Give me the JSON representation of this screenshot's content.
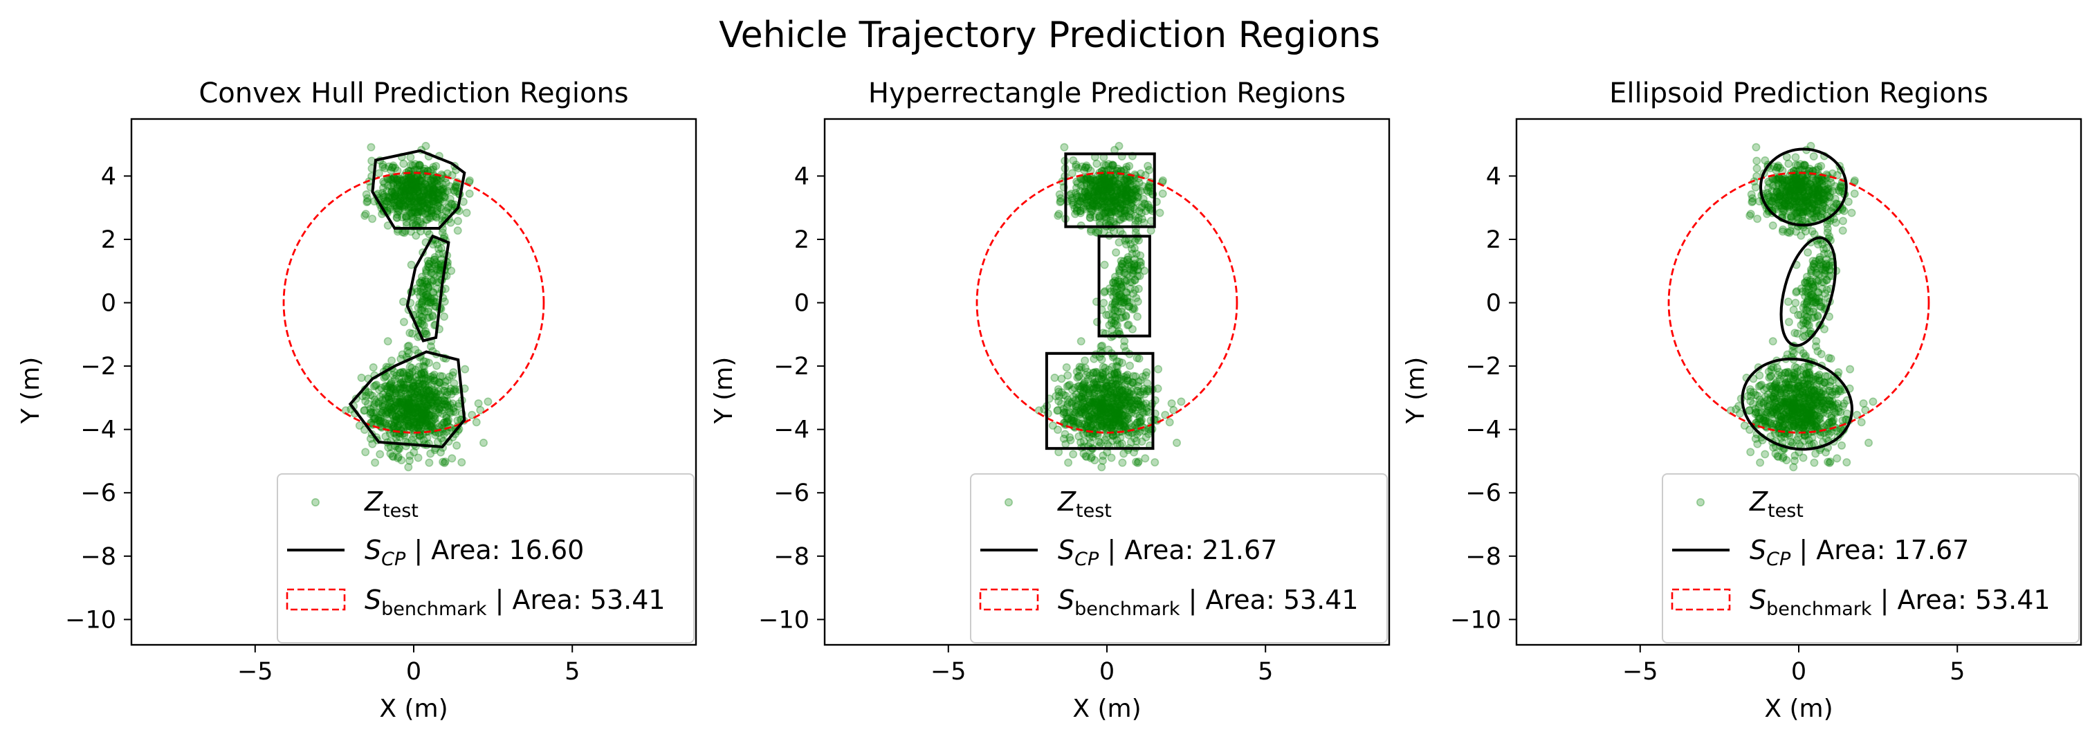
{
  "figure": {
    "title": "Vehicle Trajectory Prediction Regions"
  },
  "colors": {
    "points": "#008000",
    "region": "#000000",
    "benchmark": "#ff0000",
    "axes": "#000000",
    "legend_border": "#cccccc"
  },
  "chart_data": [
    {
      "type": "scatter",
      "title": "Convex Hull Prediction Regions",
      "xlabel": "X (m)",
      "ylabel": "Y (m)",
      "xlim": [
        -8.9,
        8.9
      ],
      "ylim": [
        -10.8,
        5.8
      ],
      "xticks": [
        -5,
        0,
        5
      ],
      "xtick_labels": [
        "−5",
        "0",
        "5"
      ],
      "yticks": [
        4,
        2,
        0,
        -2,
        -4,
        -6,
        -8,
        -10
      ],
      "ytick_labels": [
        "4",
        "2",
        "0",
        "−2",
        "−4",
        "−6",
        "−8",
        "−10"
      ],
      "grid": false,
      "clusters": [
        {
          "label": "top",
          "center": [
            0.1,
            3.4
          ],
          "spread": [
            0.65,
            0.5
          ],
          "count": 520
        },
        {
          "label": "middle",
          "center": [
            0.5,
            0.3
          ],
          "spread": [
            0.28,
            0.9
          ],
          "count": 180
        },
        {
          "label": "bottom",
          "center": [
            0.0,
            -3.3
          ],
          "spread": [
            0.75,
            0.7
          ],
          "count": 700
        }
      ],
      "region_shape": "polygon",
      "regions": [
        [
          [
            -1.2,
            4.5
          ],
          [
            0.2,
            4.8
          ],
          [
            1.2,
            4.4
          ],
          [
            1.6,
            4.1
          ],
          [
            1.4,
            3.0
          ],
          [
            0.8,
            2.35
          ],
          [
            -0.6,
            2.35
          ],
          [
            -1.3,
            3.5
          ]
        ],
        [
          [
            0.6,
            2.1
          ],
          [
            1.1,
            1.9
          ],
          [
            0.9,
            0.6
          ],
          [
            0.7,
            -1.1
          ],
          [
            0.3,
            -1.2
          ],
          [
            -0.2,
            -0.1
          ],
          [
            0.05,
            1.1
          ]
        ],
        [
          [
            -0.6,
            -2.0
          ],
          [
            0.4,
            -1.55
          ],
          [
            1.4,
            -1.8
          ],
          [
            1.6,
            -3.7
          ],
          [
            0.9,
            -4.55
          ],
          [
            -1.1,
            -4.4
          ],
          [
            -2.0,
            -3.2
          ],
          [
            -1.3,
            -2.4
          ]
        ]
      ],
      "benchmark": {
        "center": [
          0.0,
          0.0
        ],
        "radius": 4.1
      },
      "legend": {
        "position": "lower right",
        "entries": [
          {
            "symbol": "Z",
            "subscript": "test",
            "suffix": ""
          },
          {
            "symbol": "S",
            "subscript": "CP",
            "suffix": " | Area: 16.60"
          },
          {
            "symbol": "S",
            "subscript": "benchmark",
            "suffix": " | Area: 53.41"
          }
        ]
      }
    },
    {
      "type": "scatter",
      "title": "Hyperrectangle Prediction Regions",
      "xlabel": "X (m)",
      "ylabel": "Y (m)",
      "xlim": [
        -8.9,
        8.9
      ],
      "ylim": [
        -10.8,
        5.8
      ],
      "xticks": [
        -5,
        0,
        5
      ],
      "xtick_labels": [
        "−5",
        "0",
        "5"
      ],
      "yticks": [
        4,
        2,
        0,
        -2,
        -4,
        -6,
        -8,
        -10
      ],
      "ytick_labels": [
        "4",
        "2",
        "0",
        "−2",
        "−4",
        "−6",
        "−8",
        "−10"
      ],
      "grid": false,
      "clusters": [
        {
          "label": "top",
          "center": [
            0.1,
            3.4
          ],
          "spread": [
            0.65,
            0.5
          ],
          "count": 520
        },
        {
          "label": "middle",
          "center": [
            0.5,
            0.3
          ],
          "spread": [
            0.28,
            0.9
          ],
          "count": 180
        },
        {
          "label": "bottom",
          "center": [
            0.0,
            -3.3
          ],
          "spread": [
            0.75,
            0.7
          ],
          "count": 700
        }
      ],
      "region_shape": "rectangle",
      "regions": [
        {
          "x0": -1.3,
          "x1": 1.5,
          "y0": 2.4,
          "y1": 4.7
        },
        {
          "x0": -0.25,
          "x1": 1.35,
          "y0": -1.05,
          "y1": 2.1
        },
        {
          "x0": -1.9,
          "x1": 1.45,
          "y0": -4.6,
          "y1": -1.6
        }
      ],
      "benchmark": {
        "center": [
          0.0,
          0.0
        ],
        "radius": 4.1
      },
      "legend": {
        "position": "lower right",
        "entries": [
          {
            "symbol": "Z",
            "subscript": "test",
            "suffix": ""
          },
          {
            "symbol": "S",
            "subscript": "CP",
            "suffix": " | Area: 21.67"
          },
          {
            "symbol": "S",
            "subscript": "benchmark",
            "suffix": " | Area: 53.41"
          }
        ]
      }
    },
    {
      "type": "scatter",
      "title": "Ellipsoid Prediction Regions",
      "xlabel": "X (m)",
      "ylabel": "Y (m)",
      "xlim": [
        -8.9,
        8.9
      ],
      "ylim": [
        -10.8,
        5.8
      ],
      "xticks": [
        -5,
        0,
        5
      ],
      "xtick_labels": [
        "−5",
        "0",
        "5"
      ],
      "yticks": [
        4,
        2,
        0,
        -2,
        -4,
        -6,
        -8,
        -10
      ],
      "ytick_labels": [
        "4",
        "2",
        "0",
        "−2",
        "−4",
        "−6",
        "−8",
        "−10"
      ],
      "grid": false,
      "clusters": [
        {
          "label": "top",
          "center": [
            0.1,
            3.4
          ],
          "spread": [
            0.65,
            0.5
          ],
          "count": 520
        },
        {
          "label": "middle",
          "center": [
            0.5,
            0.3
          ],
          "spread": [
            0.28,
            0.9
          ],
          "count": 180
        },
        {
          "label": "bottom",
          "center": [
            0.0,
            -3.3
          ],
          "spread": [
            0.75,
            0.7
          ],
          "count": 700
        }
      ],
      "region_shape": "ellipse",
      "regions": [
        {
          "cx": 0.15,
          "cy": 3.65,
          "rx": 1.35,
          "ry": 1.2,
          "angle": 0
        },
        {
          "cx": 0.3,
          "cy": 0.35,
          "rx": 0.75,
          "ry": 1.75,
          "angle": 15
        },
        {
          "cx": -0.05,
          "cy": -3.2,
          "rx": 1.75,
          "ry": 1.4,
          "angle": 15
        }
      ],
      "benchmark": {
        "center": [
          0.0,
          0.0
        ],
        "radius": 4.1
      },
      "legend": {
        "position": "lower right",
        "entries": [
          {
            "symbol": "Z",
            "subscript": "test",
            "suffix": ""
          },
          {
            "symbol": "S",
            "subscript": "CP",
            "suffix": " | Area: 17.67"
          },
          {
            "symbol": "S",
            "subscript": "benchmark",
            "suffix": " | Area: 53.41"
          }
        ]
      }
    }
  ]
}
